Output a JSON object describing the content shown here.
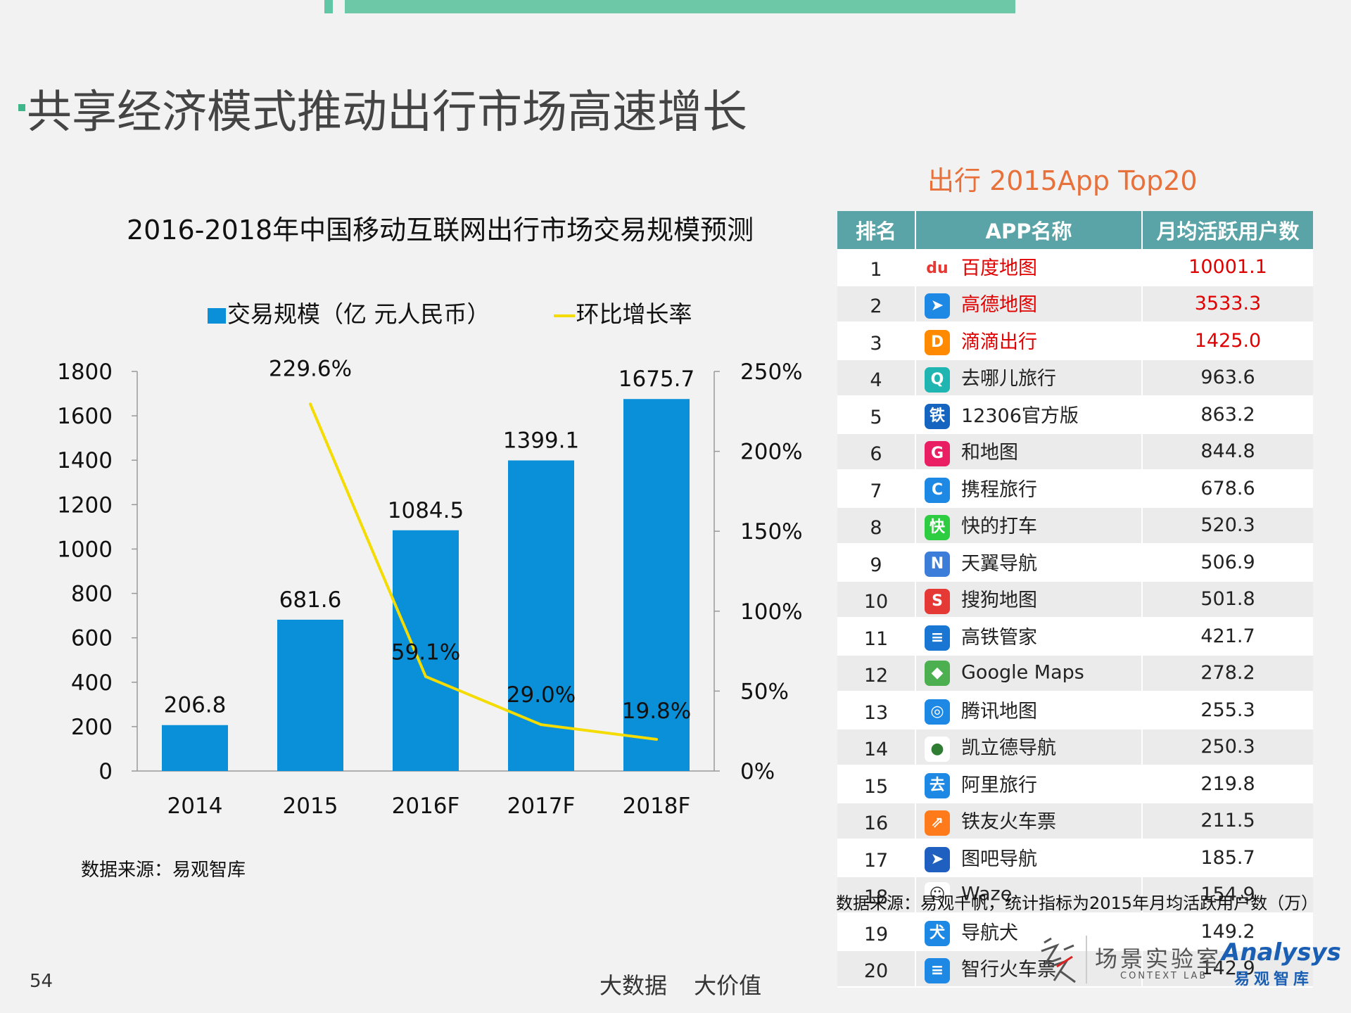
{
  "page_title": "共享经济模式推动出行市场高速增长",
  "chart_title": "2016-2018年中国移动互联网出行市场交易规模预测",
  "legend": {
    "bar_label": "交易规模（亿 元人民币）",
    "line_label": "环比增长率"
  },
  "colors": {
    "bar": "#0a90d8",
    "line": "#f4dc00",
    "table_header": "#5aa3a6",
    "highlight": "#e00000",
    "table_title": "#e8703a"
  },
  "chart_data": {
    "type": "bar",
    "categories": [
      "2014",
      "2015",
      "2016F",
      "2017F",
      "2018F"
    ],
    "series": [
      {
        "name": "交易规模（亿 元人民币）",
        "type": "bar",
        "axis": "left",
        "values": [
          206.8,
          681.6,
          1084.5,
          1399.1,
          1675.7
        ],
        "labels": [
          "206.8",
          "681.6",
          "1084.5",
          "1399.1",
          "1675.7"
        ]
      },
      {
        "name": "环比增长率",
        "type": "line",
        "axis": "right",
        "values": [
          null,
          229.6,
          59.1,
          29.0,
          19.8
        ],
        "labels": [
          "",
          "229.6%",
          "59.1%",
          "29.0%",
          "19.8%"
        ]
      }
    ],
    "y_left": {
      "min": 0,
      "max": 1800,
      "ticks": [
        "0",
        "200",
        "400",
        "600",
        "800",
        "1000",
        "1200",
        "1400",
        "1600",
        "1800"
      ]
    },
    "y_right": {
      "min": 0,
      "max": 250,
      "ticks": [
        "0%",
        "50%",
        "100%",
        "150%",
        "200%",
        "250%"
      ]
    }
  },
  "source_left": "数据来源：易观智库",
  "table": {
    "title": "出行 2015App Top20",
    "headers": [
      "排名",
      "APP名称",
      "月均活跃用户数"
    ],
    "rows": [
      {
        "rank": "1",
        "name": "百度地图",
        "users": "10001.1",
        "icon": "baidu-map-icon",
        "highlight": true
      },
      {
        "rank": "2",
        "name": "高德地图",
        "users": "3533.3",
        "icon": "amap-icon",
        "highlight": true
      },
      {
        "rank": "3",
        "name": "滴滴出行",
        "users": "1425.0",
        "icon": "didi-icon",
        "highlight": true
      },
      {
        "rank": "4",
        "name": "去哪儿旅行",
        "users": "963.6",
        "icon": "qunar-icon",
        "highlight": false
      },
      {
        "rank": "5",
        "name": "12306官方版",
        "users": "863.2",
        "icon": "railway-12306-icon",
        "highlight": false
      },
      {
        "rank": "6",
        "name": "和地图",
        "users": "844.8",
        "icon": "he-map-icon",
        "highlight": false
      },
      {
        "rank": "7",
        "name": "携程旅行",
        "users": "678.6",
        "icon": "ctrip-icon",
        "highlight": false
      },
      {
        "rank": "8",
        "name": "快的打车",
        "users": "520.3",
        "icon": "kuaidi-icon",
        "highlight": false
      },
      {
        "rank": "9",
        "name": "天翼导航",
        "users": "506.9",
        "icon": "tianyi-nav-icon",
        "highlight": false
      },
      {
        "rank": "10",
        "name": "搜狗地图",
        "users": "501.8",
        "icon": "sogou-map-icon",
        "highlight": false
      },
      {
        "rank": "11",
        "name": "高铁管家",
        "users": "421.7",
        "icon": "gaotie-icon",
        "highlight": false
      },
      {
        "rank": "12",
        "name": "Google Maps",
        "users": "278.2",
        "icon": "google-maps-icon",
        "highlight": false
      },
      {
        "rank": "13",
        "name": "腾讯地图",
        "users": "255.3",
        "icon": "tencent-map-icon",
        "highlight": false
      },
      {
        "rank": "14",
        "name": "凯立德导航",
        "users": "250.3",
        "icon": "careland-icon",
        "highlight": false
      },
      {
        "rank": "15",
        "name": "阿里旅行",
        "users": "219.8",
        "icon": "alitrip-icon",
        "highlight": false
      },
      {
        "rank": "16",
        "name": "铁友火车票",
        "users": "211.5",
        "icon": "tieyou-icon",
        "highlight": false
      },
      {
        "rank": "17",
        "name": "图吧导航",
        "users": "185.7",
        "icon": "mapbar-icon",
        "highlight": false
      },
      {
        "rank": "18",
        "name": "Waze",
        "users": "154.9",
        "icon": "waze-icon",
        "highlight": false
      },
      {
        "rank": "19",
        "name": "导航犬",
        "users": "149.2",
        "icon": "daohangquan-icon",
        "highlight": false
      },
      {
        "rank": "20",
        "name": "智行火车票",
        "users": "142.9",
        "icon": "zhixing-icon",
        "highlight": false
      }
    ]
  },
  "source_right": "数据来源：易观千帆，统计指标为2015年月均活跃用户数（万）",
  "page_number": "54",
  "footer_slogan": "大数据 大价值",
  "logos": {
    "context_cn": "场景实验室",
    "context_en": "CONTEXT LAB",
    "analysys_en": "Analysys",
    "analysys_cn": "易观智库"
  }
}
